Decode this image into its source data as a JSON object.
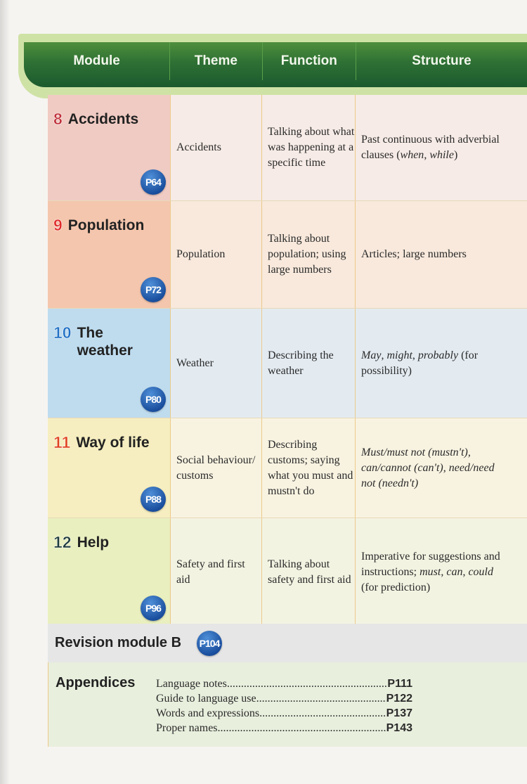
{
  "header": {
    "columns": [
      "Module",
      "Theme",
      "Function",
      "Structure"
    ]
  },
  "colors": {
    "header_green": "#2e7034",
    "badge_blue": "#1a4f9e"
  },
  "modules": [
    {
      "number": "8",
      "title": "Accidents",
      "page": "P64",
      "theme": "Accidents",
      "function": "Talking about what was happening at a specific time",
      "structure": [
        {
          "text": "Past continuous with adverbial clauses (",
          "italic": false
        },
        {
          "text": "when",
          "italic": true
        },
        {
          "text": ", ",
          "italic": false
        },
        {
          "text": "while",
          "italic": true
        },
        {
          "text": ")",
          "italic": false
        }
      ],
      "num_color": "#c0303a",
      "mod_bg": "#f0cbc3",
      "cell_bg": "#f6ebe6"
    },
    {
      "number": "9",
      "title": "Population",
      "page": "P72",
      "theme": "Population",
      "function": "Talking about population; using large numbers",
      "structure": [
        {
          "text": "Articles; large numbers",
          "italic": false
        }
      ],
      "num_color": "#e02a2a",
      "mod_bg": "#f4c6ad",
      "cell_bg": "#f8e9dc"
    },
    {
      "number": "10",
      "title": "The weather",
      "page": "P80",
      "theme": "Weather",
      "function": "Describing the weather",
      "structure": [
        {
          "text": "May",
          "italic": true
        },
        {
          "text": ", ",
          "italic": false
        },
        {
          "text": "might",
          "italic": true
        },
        {
          "text": ", ",
          "italic": false
        },
        {
          "text": "probably",
          "italic": true
        },
        {
          "text": " (for possibility)",
          "italic": false
        }
      ],
      "num_color": "#1f6fc4",
      "mod_bg": "#bfdcef",
      "cell_bg": "#e3ebf1"
    },
    {
      "number": "11",
      "title": "Way of life",
      "page": "P88",
      "theme": "Social behaviour/ customs",
      "function": "Describing customs; saying what you must and mustn't do",
      "structure": [
        {
          "text": "Must/must not (mustn't), can/cannot (can't), need/need not (needn't)",
          "italic": true
        }
      ],
      "num_color": "#e0401e",
      "mod_bg": "#f6eec0",
      "cell_bg": "#f8f3e1"
    },
    {
      "number": "12",
      "title": "Help",
      "page": "P96",
      "theme": "Safety and first aid",
      "function": "Talking about safety and first aid",
      "structure": [
        {
          "text": "Imperative for suggestions and instructions; ",
          "italic": false
        },
        {
          "text": "must",
          "italic": true
        },
        {
          "text": ", ",
          "italic": false
        },
        {
          "text": "can",
          "italic": true
        },
        {
          "text": ", ",
          "italic": false
        },
        {
          "text": "could",
          "italic": true
        },
        {
          "text": " (for prediction)",
          "italic": false
        }
      ],
      "num_color": "#1f3b3b",
      "mod_bg": "#e9efbf",
      "cell_bg": "#f3f3e2"
    }
  ],
  "revision": {
    "title": "Revision module B",
    "page": "P104"
  },
  "appendices": {
    "title": "Appendices",
    "items": [
      {
        "label": "Language notes",
        "page": "P111"
      },
      {
        "label": "Guide to language use",
        "page": "P122"
      },
      {
        "label": "Words and expressions",
        "page": "P137"
      },
      {
        "label": "Proper names",
        "page": "P143"
      }
    ]
  }
}
